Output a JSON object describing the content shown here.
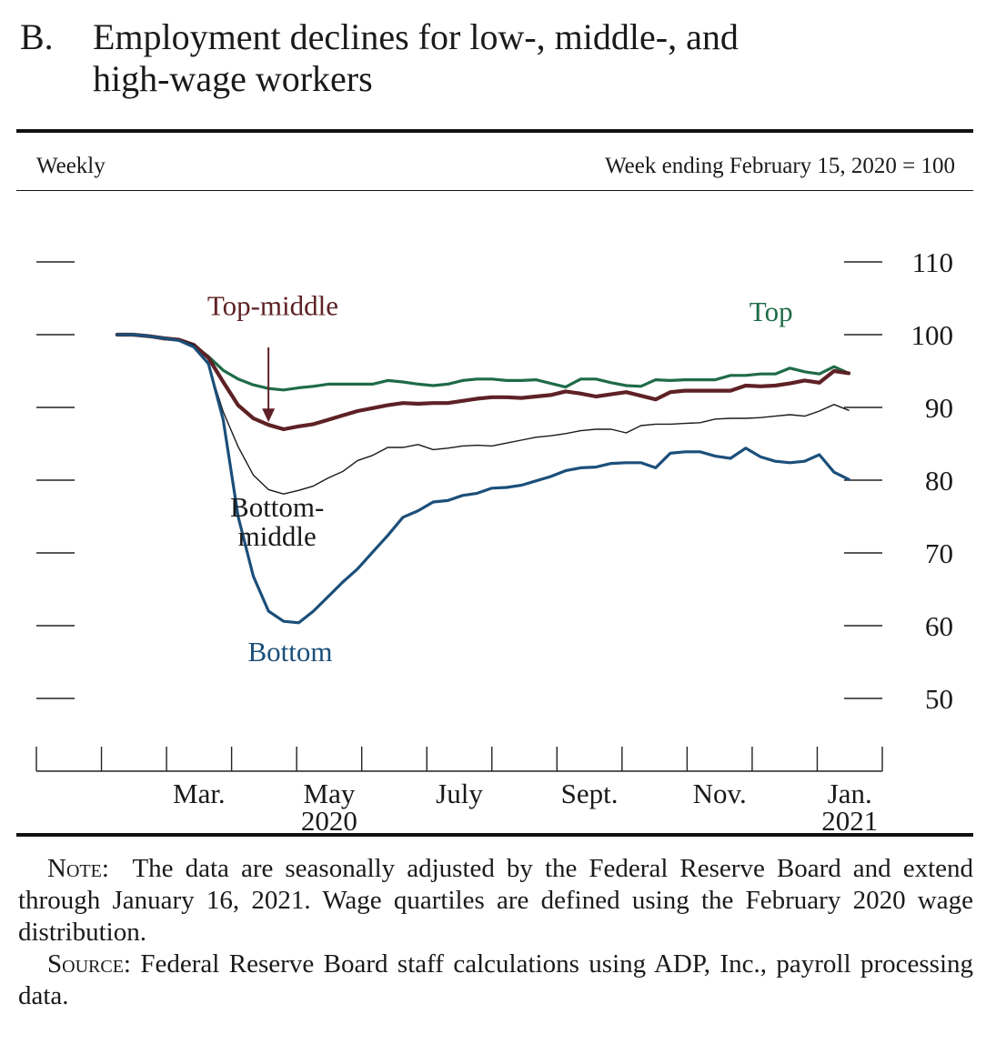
{
  "panel": {
    "letter": "B.",
    "title_line1": "Employment declines for low-, middle-, and",
    "title_line2": "high-wage workers"
  },
  "meta": {
    "frequency": "Weekly",
    "index_note": "Week ending February 15, 2020 = 100"
  },
  "chart_data": {
    "type": "line",
    "ylim": [
      50,
      110
    ],
    "y_ticks": [
      50,
      60,
      70,
      80,
      90,
      100,
      110
    ],
    "y_tick_labels": [
      "50",
      "60",
      "70",
      "80",
      "90",
      "100",
      "110"
    ],
    "x_axis": {
      "start": "2020-01",
      "month_tick_labels": [
        {
          "month": "2020-03",
          "label": "Mar."
        },
        {
          "month": "2020-05",
          "label": "May"
        },
        {
          "month": "2020-07",
          "label": "July"
        },
        {
          "month": "2020-09",
          "label": "Sept."
        },
        {
          "month": "2020-11",
          "label": "Nov."
        },
        {
          "month": "2021-01",
          "label": "Jan."
        }
      ],
      "year_labels": [
        {
          "month": "2020-05",
          "label": "2020"
        },
        {
          "month": "2021-01",
          "label": "2021"
        }
      ]
    },
    "x": [
      "2020-02-08",
      "2020-02-15",
      "2020-02-22",
      "2020-02-29",
      "2020-03-07",
      "2020-03-14",
      "2020-03-21",
      "2020-03-28",
      "2020-04-04",
      "2020-04-11",
      "2020-04-18",
      "2020-04-25",
      "2020-05-02",
      "2020-05-09",
      "2020-05-16",
      "2020-05-23",
      "2020-05-30",
      "2020-06-06",
      "2020-06-13",
      "2020-06-20",
      "2020-06-27",
      "2020-07-04",
      "2020-07-11",
      "2020-07-18",
      "2020-07-25",
      "2020-08-01",
      "2020-08-08",
      "2020-08-15",
      "2020-08-22",
      "2020-08-29",
      "2020-09-05",
      "2020-09-12",
      "2020-09-19",
      "2020-09-26",
      "2020-10-03",
      "2020-10-10",
      "2020-10-17",
      "2020-10-24",
      "2020-10-31",
      "2020-11-07",
      "2020-11-14",
      "2020-11-21",
      "2020-11-28",
      "2020-12-05",
      "2020-12-12",
      "2020-12-19",
      "2020-12-26",
      "2021-01-02",
      "2021-01-09",
      "2021-01-16"
    ],
    "series": [
      {
        "name": "Top",
        "color": "#1f6b47",
        "values": [
          100,
          100,
          99.8,
          99.4,
          99.3,
          98.5,
          97,
          95.1,
          93.9,
          93.1,
          92.6,
          92.4,
          92.7,
          92.9,
          93.2,
          93.2,
          93.2,
          93.2,
          93.7,
          93.5,
          93.2,
          93,
          93.2,
          93.7,
          93.9,
          93.9,
          93.7,
          93.7,
          93.8,
          93.3,
          92.8,
          93.9,
          93.9,
          93.4,
          93,
          92.9,
          93.8,
          93.7,
          93.8,
          93.8,
          93.8,
          94.4,
          94.4,
          94.6,
          94.6,
          95.4,
          94.9,
          94.6,
          95.6,
          94.7
        ],
        "label": {
          "text": "Top",
          "anchor_date": "2020-12-10",
          "anchor_value": 101.9
        }
      },
      {
        "name": "Top-middle",
        "color": "#5e2125",
        "values": [
          100,
          100,
          99.8,
          99.5,
          99.3,
          98.6,
          96.8,
          93.5,
          90.3,
          88.5,
          87.6,
          87,
          87.4,
          87.7,
          88.3,
          88.9,
          89.5,
          89.9,
          90.3,
          90.6,
          90.5,
          90.6,
          90.6,
          90.9,
          91.2,
          91.4,
          91.4,
          91.3,
          91.5,
          91.7,
          92.2,
          91.9,
          91.5,
          91.8,
          92.1,
          91.6,
          91.1,
          92.1,
          92.3,
          92.3,
          92.3,
          92.3,
          93,
          92.9,
          93,
          93.3,
          93.7,
          93.4,
          95,
          94.7
        ],
        "label": {
          "text": "Top-middle",
          "anchor_date": "2020-04-20",
          "anchor_value": 102.7
        }
      },
      {
        "name": "Bottom-middle",
        "color": "#1a1a1a",
        "values": [
          100,
          100,
          99.8,
          99.5,
          99.3,
          98.6,
          95.8,
          89.4,
          84.6,
          80.7,
          78.7,
          78.1,
          78.6,
          79.2,
          80.3,
          81.2,
          82.7,
          83.4,
          84.5,
          84.5,
          84.9,
          84.2,
          84.4,
          84.7,
          84.8,
          84.7,
          85.1,
          85.5,
          85.9,
          86.1,
          86.4,
          86.8,
          87,
          87,
          86.5,
          87.5,
          87.7,
          87.7,
          87.8,
          87.9,
          88.4,
          88.5,
          88.5,
          88.6,
          88.8,
          89,
          88.8,
          89.5,
          90.4,
          89.6
        ],
        "label": {
          "text": "Bottom-\nmiddle",
          "anchor_date": "2020-04-22",
          "anchor_value": 75
        }
      },
      {
        "name": "Bottom",
        "color": "#1b4f7a",
        "values": [
          100,
          100,
          99.8,
          99.5,
          99.2,
          98.3,
          96,
          88.3,
          75,
          66.8,
          62,
          60.6,
          60.4,
          62,
          64,
          66,
          67.8,
          70.1,
          72.4,
          74.9,
          75.8,
          77,
          77.2,
          77.9,
          78.2,
          78.9,
          79,
          79.3,
          79.9,
          80.5,
          81.3,
          81.7,
          81.8,
          82.3,
          82.4,
          82.4,
          81.7,
          83.7,
          83.9,
          83.9,
          83.3,
          83,
          84.4,
          83.2,
          82.6,
          82.4,
          82.6,
          83.5,
          81.1,
          80.1
        ],
        "label": {
          "text": "Bottom",
          "anchor_date": "2020-04-28",
          "anchor_value": 55.1
        }
      }
    ]
  },
  "notes": {
    "note_label": "Note:",
    "note_text": "The data are seasonally adjusted by the Federal Reserve Board and extend through January 16, 2021. Wage quartiles are defined using the February 2020 wage distribution.",
    "source_label": "Source:",
    "source_text": "Federal Reserve Board staff calculations using ADP, Inc., payroll processing data."
  }
}
